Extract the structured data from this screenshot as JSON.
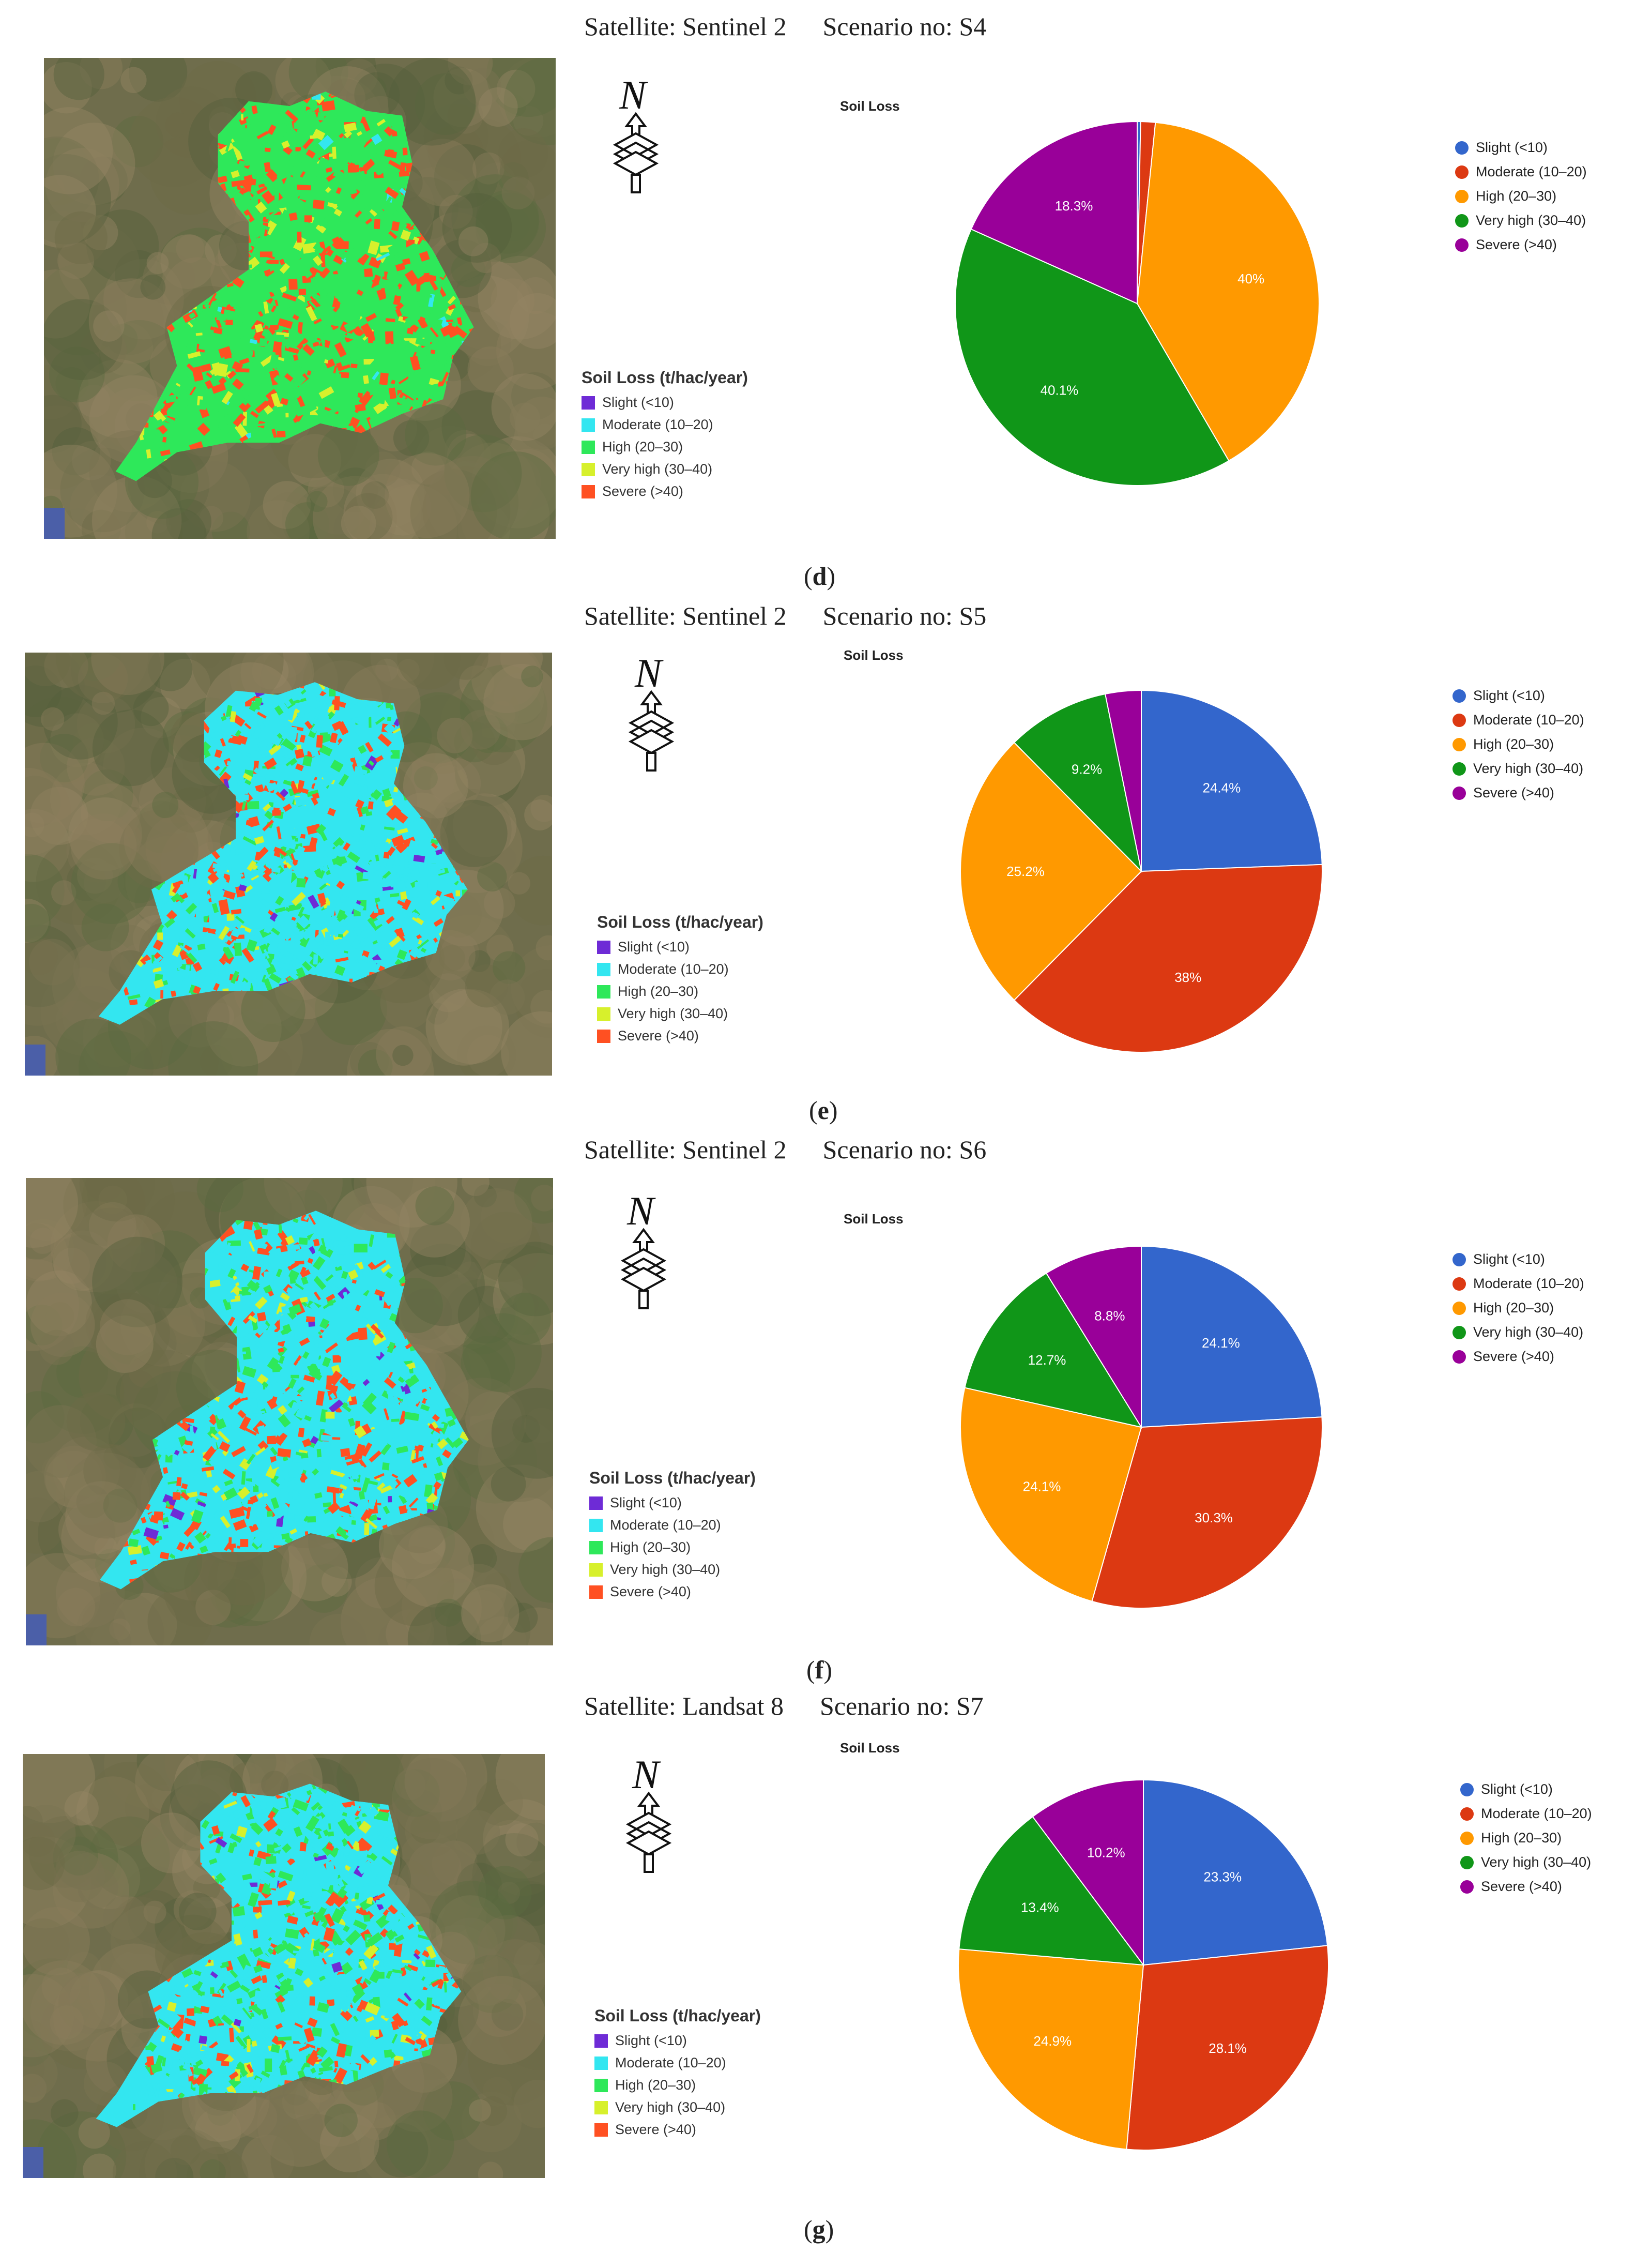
{
  "panels": [
    {
      "heading": {
        "satellite": "Satellite: Sentinel 2",
        "scenario": "Scenario no: S4"
      },
      "caption_letter": "d",
      "map_legend": {
        "title": "Soil Loss (t/hac/year)",
        "items": [
          "Slight (<10)",
          "Moderate (10–20)",
          "High (20–30)",
          "Very high (30–40)",
          "Severe (>40)"
        ]
      },
      "map_palette": [
        "#6e2bd6",
        "#33e6f0",
        "#2ee85a",
        "#d7f02c",
        "#ff5022"
      ],
      "map_mix": [
        0.0,
        0.02,
        0.55,
        0.1,
        0.33
      ]
    },
    {
      "heading": {
        "satellite": "Satellite: Sentinel 2",
        "scenario": "Scenario no: S5"
      },
      "caption_letter": "e",
      "map_legend": {
        "title": "Soil Loss (t/hac/year)",
        "items": [
          "Slight (<10)",
          "Moderate (10–20)",
          "High (20–30)",
          "Very high (30–40)",
          "Severe (>40)"
        ]
      },
      "map_palette": [
        "#6e2bd6",
        "#33e6f0",
        "#2ee85a",
        "#d7f02c",
        "#ff5022"
      ],
      "map_mix": [
        0.02,
        0.55,
        0.2,
        0.06,
        0.17
      ]
    },
    {
      "heading": {
        "satellite": "Satellite: Sentinel 2",
        "scenario": "Scenario no: S6"
      },
      "caption_letter": "f",
      "map_legend": {
        "title": "Soil Loss (t/hac/year)",
        "items": [
          "Slight (<10)",
          "Moderate (10–20)",
          "High (20–30)",
          "Very high (30–40)",
          "Severe (>40)"
        ]
      },
      "map_palette": [
        "#6e2bd6",
        "#33e6f0",
        "#2ee85a",
        "#d7f02c",
        "#ff5022"
      ],
      "map_mix": [
        0.02,
        0.5,
        0.22,
        0.06,
        0.2
      ]
    },
    {
      "heading": {
        "satellite": "Satellite: Landsat 8",
        "scenario": "Scenario no: S7"
      },
      "caption_letter": "g",
      "map_legend": {
        "title": "Soil Loss (t/hac/year)",
        "items": [
          "Slight (<10)",
          "Moderate (10–20)",
          "High (20–30)",
          "Very high (30–40)",
          "Severe (>40)"
        ]
      },
      "map_palette": [
        "#6e2bd6",
        "#33e6f0",
        "#2ee85a",
        "#d7f02c",
        "#ff5022"
      ],
      "map_mix": [
        0.02,
        0.48,
        0.26,
        0.06,
        0.18
      ]
    }
  ],
  "chart_data": [
    {
      "type": "pie",
      "title": "Soil Loss",
      "categories": [
        "Slight (<10)",
        "Moderate (10–20)",
        "High (20–30)",
        "Very high (30–40)",
        "Severe (>40)"
      ],
      "values": [
        0.3,
        1.3,
        40,
        40.1,
        18.3
      ],
      "labels": [
        "",
        "",
        "40%",
        "40.1%",
        "18.3%"
      ],
      "colors": [
        "#3366cc",
        "#dc3912",
        "#ff9900",
        "#109618",
        "#990099"
      ],
      "legend": "right"
    },
    {
      "type": "pie",
      "title": "Soil Loss",
      "categories": [
        "Slight (<10)",
        "Moderate (10–20)",
        "High (20–30)",
        "Very high (30–40)",
        "Severe (>40)"
      ],
      "values": [
        24.4,
        38,
        25.2,
        9.2,
        3.2
      ],
      "labels": [
        "24.4%",
        "38%",
        "25.2%",
        "9.2%",
        ""
      ],
      "colors": [
        "#3366cc",
        "#dc3912",
        "#ff9900",
        "#109618",
        "#990099"
      ],
      "legend": "right"
    },
    {
      "type": "pie",
      "title": "Soil Loss",
      "categories": [
        "Slight (<10)",
        "Moderate (10–20)",
        "High (20–30)",
        "Very high (30–40)",
        "Severe (>40)"
      ],
      "values": [
        24.1,
        30.3,
        24.1,
        12.7,
        8.8
      ],
      "labels": [
        "24.1%",
        "30.3%",
        "24.1%",
        "12.7%",
        "8.8%"
      ],
      "colors": [
        "#3366cc",
        "#dc3912",
        "#ff9900",
        "#109618",
        "#990099"
      ],
      "legend": "right"
    },
    {
      "type": "pie",
      "title": "Soil Loss",
      "categories": [
        "Slight (<10)",
        "Moderate (10–20)",
        "High (20–30)",
        "Very high (30–40)",
        "Severe (>40)"
      ],
      "values": [
        23.3,
        28.1,
        24.9,
        13.4,
        10.2
      ],
      "labels": [
        "23.3%",
        "28.1%",
        "24.9%",
        "13.4%",
        "10.2%"
      ],
      "colors": [
        "#3366cc",
        "#dc3912",
        "#ff9900",
        "#109618",
        "#990099"
      ],
      "legend": "right"
    }
  ]
}
